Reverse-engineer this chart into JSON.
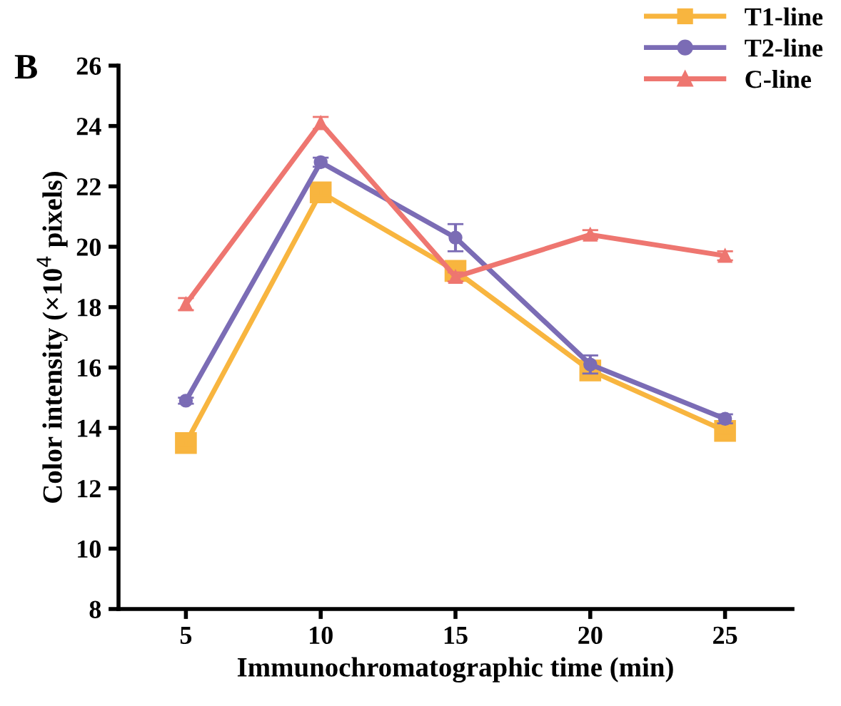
{
  "chart_data": {
    "type": "line",
    "xlabel": "Immunochromatographic time (min)",
    "ylabel": "Color intensity (×10$^{4}$ pixels)",
    "annotations": [
      "B"
    ],
    "x": [
      5,
      10,
      15,
      20,
      25
    ],
    "series": [
      {
        "name": "T1-line",
        "color": "#f8b53f",
        "marker": "square",
        "values": [
          13.5,
          21.8,
          19.2,
          15.9,
          13.9
        ],
        "errors": [
          0.1,
          0.1,
          0.25,
          0.2,
          0.1
        ]
      },
      {
        "name": "T2-line",
        "color": "#7b6cb5",
        "marker": "circle",
        "values": [
          14.9,
          22.8,
          20.3,
          16.1,
          14.3
        ],
        "errors": [
          0.1,
          0.15,
          0.45,
          0.3,
          0.15
        ]
      },
      {
        "name": "C-line",
        "color": "#ee7670",
        "marker": "triangle",
        "values": [
          18.1,
          24.1,
          19.0,
          20.4,
          19.7
        ],
        "errors": [
          0.2,
          0.2,
          0.15,
          0.15,
          0.15
        ]
      }
    ],
    "xlim": [
      2.5,
      27.5
    ],
    "xticks": [
      5,
      10,
      15,
      20,
      25
    ],
    "ylim": [
      8,
      26
    ],
    "yticks": [
      8,
      10,
      12,
      14,
      16,
      18,
      20,
      22,
      24,
      26
    ],
    "grid": false,
    "legend": "top right",
    "line_style": "solid"
  }
}
